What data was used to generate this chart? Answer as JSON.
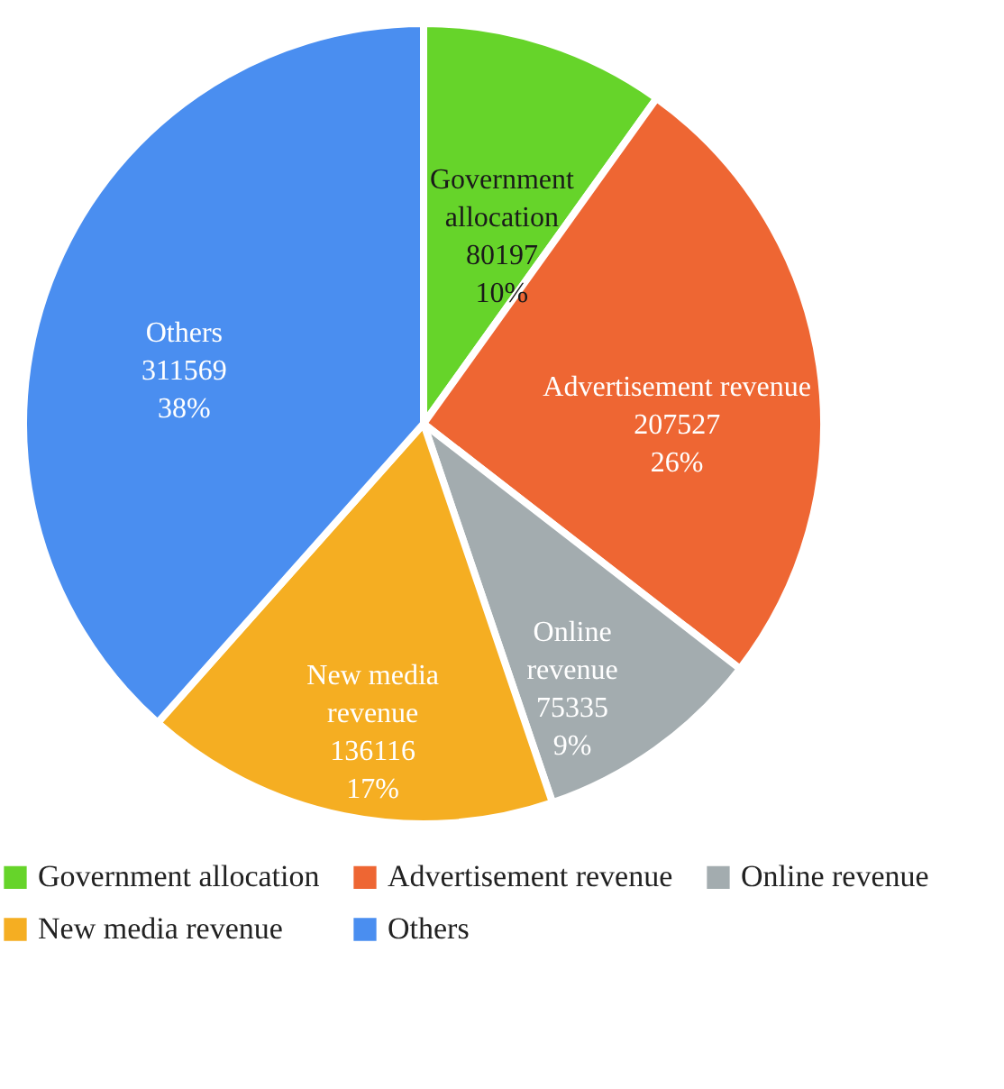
{
  "chart_data": {
    "type": "pie",
    "categories": [
      "Government allocation",
      "Advertisement revenue",
      "Online revenue",
      "New media revenue",
      "Others"
    ],
    "values": [
      80197,
      207527,
      75335,
      136116,
      311569
    ],
    "colors": [
      "#66d42a",
      "#ee6633",
      "#a3acaf",
      "#f5ae22",
      "#4a8ef0"
    ],
    "value_labels": [
      "80197\n10%",
      "207527\n26%",
      "75335\n9%",
      "136116\n17%",
      "311569\n38%"
    ],
    "legend": "bottom"
  }
}
